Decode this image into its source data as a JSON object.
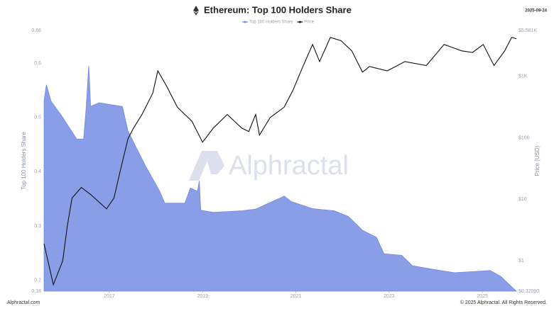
{
  "chart_data": {
    "type": "area_line",
    "title": "Ethereum: Top 100 Holders Share",
    "date": "2025-09-24",
    "watermark": "Alphractal",
    "ylabel": "Top 100 Holders Share",
    "y2label": "Price (USD)",
    "footer_left": "Alphractal.com",
    "footer_right": "© 2025 Alphractal. All Rights Reserved.",
    "xlim": [
      2015.6,
      2025.73
    ],
    "xticks": [
      2017,
      2019,
      2021,
      2023,
      2025
    ],
    "ylim": [
      0.18,
      0.66
    ],
    "yticks": [
      0.18,
      0.2,
      0.3,
      0.4,
      0.5,
      0.6,
      0.66
    ],
    "y2lim": [
      0.3209,
      5581
    ],
    "y2log": true,
    "y2ticks": [
      {
        "value": 0.3209,
        "label": "$0.32090"
      },
      {
        "value": 1,
        "label": "$1"
      },
      {
        "value": 10,
        "label": "$10"
      },
      {
        "value": 100,
        "label": "$100"
      },
      {
        "value": 1000,
        "label": "$1K"
      },
      {
        "value": 5581,
        "label": "$5.581K"
      }
    ],
    "grid": false,
    "series": [
      {
        "name": "Top 100 Holders Share",
        "color": "#8a9ee8",
        "x": [
          2015.6,
          2015.65,
          2015.75,
          2016.0,
          2016.3,
          2016.45,
          2016.5,
          2016.56,
          2016.6,
          2016.78,
          2017.28,
          2017.4,
          2017.55,
          2017.78,
          2018.08,
          2018.19,
          2018.62,
          2018.74,
          2018.89,
          2018.93,
          2018.96,
          2019.23,
          2019.84,
          2020.14,
          2020.75,
          2020.9,
          2021.36,
          2021.82,
          2022.12,
          2022.43,
          2022.73,
          2022.89,
          2023.27,
          2023.5,
          2023.95,
          2024.41,
          2025.17,
          2025.4,
          2025.63,
          2025.73
        ],
        "values": [
          0.53,
          0.56,
          0.53,
          0.5,
          0.46,
          0.46,
          0.514,
          0.595,
          0.52,
          0.527,
          0.52,
          0.475,
          0.449,
          0.41,
          0.364,
          0.342,
          0.342,
          0.37,
          0.364,
          0.383,
          0.329,
          0.325,
          0.328,
          0.331,
          0.355,
          0.345,
          0.332,
          0.328,
          0.318,
          0.292,
          0.279,
          0.249,
          0.246,
          0.227,
          0.22,
          0.214,
          0.218,
          0.207,
          0.188,
          0.18
        ]
      },
      {
        "name": "Price",
        "color": "#111111",
        "axis": "y2",
        "x": [
          2015.6,
          2015.8,
          2016.0,
          2016.1,
          2016.2,
          2016.4,
          2016.6,
          2016.94,
          2017.1,
          2017.22,
          2017.4,
          2017.52,
          2017.7,
          2017.93,
          2018.04,
          2018.23,
          2018.46,
          2018.77,
          2019.0,
          2019.23,
          2019.53,
          2019.84,
          2019.99,
          2020.14,
          2020.22,
          2020.45,
          2020.75,
          2020.94,
          2021.13,
          2021.36,
          2021.51,
          2021.74,
          2021.97,
          2022.2,
          2022.43,
          2022.58,
          2022.96,
          2023.34,
          2023.8,
          2024.18,
          2024.56,
          2024.79,
          2025.02,
          2025.25,
          2025.48,
          2025.63,
          2025.73
        ],
        "values": [
          1.9,
          0.41,
          1,
          3.7,
          10.5,
          15.6,
          12,
          7,
          10.5,
          26,
          97,
          144,
          240,
          530,
          1230,
          690,
          315,
          187,
          85,
          144,
          240,
          144,
          127,
          240,
          111,
          214,
          315,
          600,
          1320,
          3300,
          1740,
          4300,
          3800,
          2600,
          1170,
          1450,
          1230,
          1740,
          1500,
          3300,
          2600,
          2450,
          3300,
          1500,
          2600,
          4300,
          4100
        ]
      }
    ]
  }
}
